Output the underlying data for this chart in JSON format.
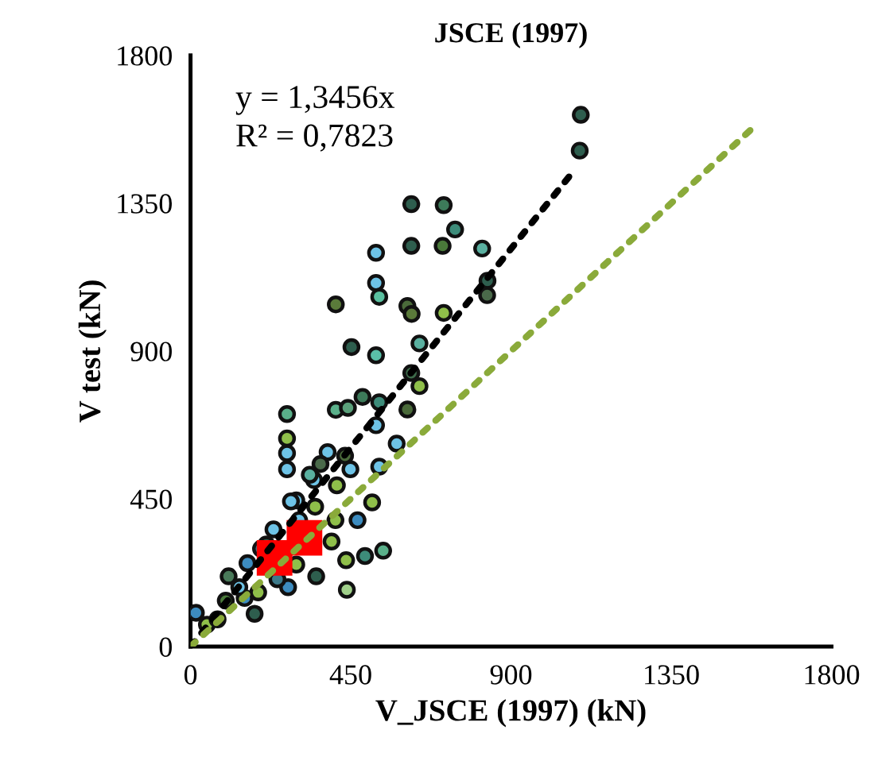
{
  "chart_data": {
    "type": "scatter",
    "title": "JSCE (1997)",
    "xlabel": "V_JSCE (1997) (kN)",
    "ylabel": "V test (kN)",
    "xlim": [
      0,
      1800
    ],
    "ylim": [
      0,
      1800
    ],
    "xticks": [
      0,
      450,
      900,
      1350,
      1800
    ],
    "yticks": [
      0,
      450,
      900,
      1350,
      1800
    ],
    "grid": false,
    "annotations": [
      "y = 1,3456x",
      "R² = 0,7823"
    ],
    "series": [
      {
        "marker": "circle",
        "x": [
          1096,
          1093,
          620,
          711,
          743,
          620,
          708,
          819,
          521,
          521,
          530,
          408,
          834,
          833,
          609,
          621,
          711,
          452,
          521,
          643,
          620,
          643,
          483,
          408,
          442,
          530,
          609,
          521,
          579,
          271,
          271,
          271,
          271,
          385,
          434,
          530,
          347,
          411,
          297,
          510,
          407,
          469,
          350,
          233,
          198,
          541,
          490,
          437,
          353,
          439,
          297,
          274,
          160,
          107,
          180,
          15,
          46,
          99,
          152,
          244,
          335,
          449,
          213,
          305,
          396,
          76,
          137,
          190,
          282,
          365
        ],
        "values": [
          1619,
          1510,
          1347,
          1344,
          1270,
          1220,
          1220,
          1212,
          1199,
          1107,
          1065,
          1042,
          1114,
          1070,
          1037,
          1013,
          1016,
          912,
          887,
          923,
          833,
          793,
          760,
          721,
          727,
          744,
          722,
          674,
          618,
          708,
          634,
          589,
          540,
          592,
          581,
          548,
          507,
          491,
          445,
          439,
          385,
          385,
          426,
          357,
          298,
          292,
          276,
          263,
          214,
          173,
          250,
          181,
          254,
          214,
          100,
          103,
          67,
          140,
          148,
          205,
          523,
          540,
          311,
          385,
          320,
          83,
          181,
          165,
          442,
          556
        ],
        "colors": [
          "#2e5e4e",
          "#2e5e4e",
          "#2e5e4e",
          "#3d7a5a",
          "#3d8c7a",
          "#2e5e4e",
          "#4a7a3a",
          "#5ab0a0",
          "#6ec3e6",
          "#6ec3e6",
          "#5ac0a0",
          "#5a7a3a",
          "#2e5e4e",
          "#4a6a4a",
          "#4a6a3a",
          "#5a7a3a",
          "#8fbf4a",
          "#2e5e4e",
          "#5ac0a8",
          "#5ab0a0",
          "#3d6a4a",
          "#8fbf4a",
          "#3d7a5a",
          "#5ab08a",
          "#5aa07a",
          "#3d8c7a",
          "#4a6a3a",
          "#6ec3e6",
          "#6ec3e6",
          "#5ab08a",
          "#8fbf4a",
          "#6ec3e6",
          "#6ec3e6",
          "#6ec3e6",
          "#4a6a3a",
          "#6ec3e6",
          "#6ec3e6",
          "#8fbf4a",
          "#6ec3e6",
          "#8fbf4a",
          "#8fbf4a",
          "#3d8cc0",
          "#8fbf4a",
          "#6ec3e6",
          "#3d7a8a",
          "#5ab08a",
          "#3d8c7a",
          "#8fbf4a",
          "#2e5e4e",
          "#a0d08a",
          "#8fbf4a",
          "#3d8cc0",
          "#3d8cc0",
          "#4a7a5a",
          "#2e5e4e",
          "#3d8cc0",
          "#8fbf4a",
          "#4a7a3a",
          "#3d8cc0",
          "#3d7a8a",
          "#5ab0a0",
          "#6ec3e6",
          "#2e5e4e",
          "#6ec3e6",
          "#8fbf4a",
          "#5a7a3a",
          "#6ec3e6",
          "#8fbf4a",
          "#6ec3e6",
          "#4a6a4a"
        ]
      },
      {
        "marker": "square",
        "color": "#ff0000",
        "x": [
          236,
          320
        ],
        "values": [
          270,
          331
        ]
      },
      {
        "type": "line",
        "line_style": "dotted",
        "color": "#000000",
        "x": [
          0,
          1070
        ],
        "values": [
          0,
          1440
        ]
      },
      {
        "type": "line",
        "line_style": "dotted",
        "color": "#8aaa3a",
        "x": [
          0,
          1580
        ],
        "values": [
          0,
          1580
        ]
      }
    ]
  }
}
